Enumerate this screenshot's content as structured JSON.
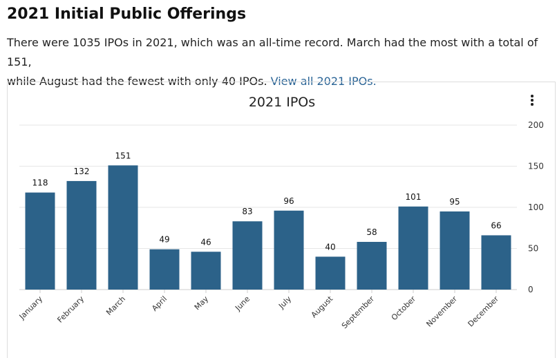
{
  "page": {
    "title": "2021 Initial Public Offerings",
    "intro_line1": "There were 1035 IPOs in 2021, which was an all-time record. March had the most with a total of 151,",
    "intro_line2": "while August had the fewest with only 40 IPOs. ",
    "link": "View all 2021 IPOs."
  },
  "chart_menu": {
    "icon": "more-vertical-icon"
  },
  "colors": {
    "bar": "#2c6289",
    "grid": "#e6e6e6",
    "link": "#2a6496"
  },
  "chart_data": {
    "type": "bar",
    "title": "2021 IPOs",
    "categories": [
      "January",
      "February",
      "March",
      "April",
      "May",
      "June",
      "July",
      "August",
      "September",
      "October",
      "November",
      "December"
    ],
    "values": [
      118,
      132,
      151,
      49,
      46,
      83,
      96,
      40,
      58,
      101,
      95,
      66
    ],
    "ylim": [
      0,
      200
    ],
    "yticks": [
      0,
      50,
      100,
      150,
      200
    ],
    "y_axis_position": "right",
    "grid": true,
    "data_labels": true
  }
}
